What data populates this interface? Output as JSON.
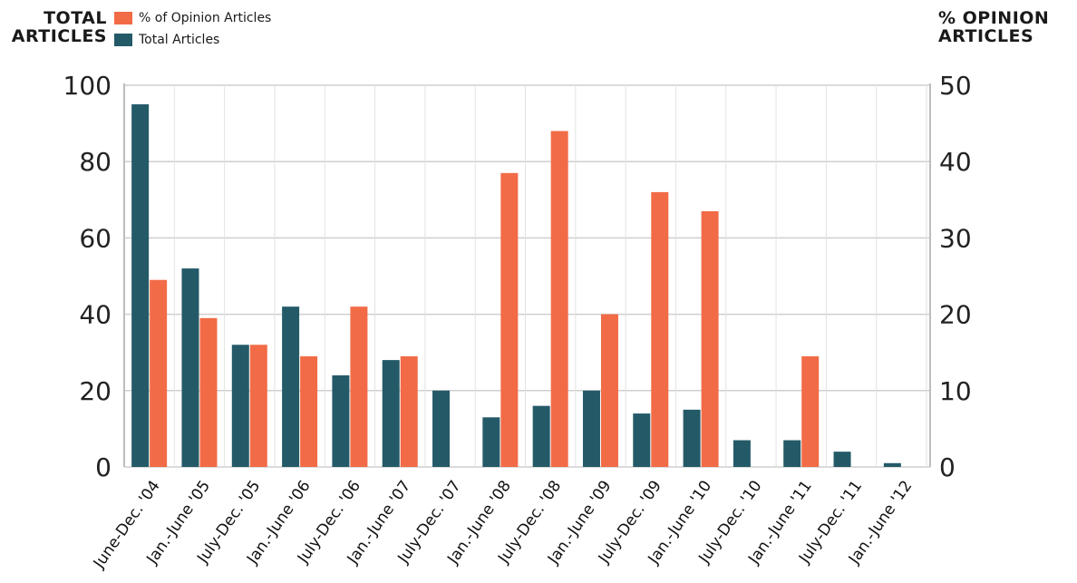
{
  "chart_data": {
    "type": "bar",
    "y_left_title": [
      "TOTAL",
      "ARTICLES"
    ],
    "y_right_title": [
      "% OPINION",
      "ARTICLES"
    ],
    "categories": [
      "June-Dec. '04",
      "Jan.-June '05",
      "July-Dec. '05",
      "Jan.-June '06",
      "July-Dec. '06",
      "Jan.-June '07",
      "July-Dec. '07",
      "Jan.-June '08",
      "July-Dec. '08",
      "Jan.-June '09",
      "July-Dec. '09",
      "Jan.-June '10",
      "July-Dec. '10",
      "Jan.-June '11",
      "July-Dec. '11",
      "Jan.-June '12"
    ],
    "series": [
      {
        "name": "Total Articles",
        "axis": "left",
        "color": "#245a68",
        "values": [
          95,
          52,
          32,
          42,
          24,
          28,
          20,
          13,
          16,
          20,
          14,
          15,
          7,
          7,
          4,
          1
        ]
      },
      {
        "name": "% of Opinion Articles",
        "axis": "right",
        "color": "#f26b47",
        "values": [
          24.5,
          19.5,
          16,
          14.5,
          21,
          14.5,
          0,
          38.5,
          44,
          20,
          36,
          33.5,
          0,
          14.5,
          0,
          0
        ]
      }
    ],
    "ylim_left": [
      0,
      100
    ],
    "ylim_right": [
      0,
      50
    ],
    "yticks_left": [
      0,
      20,
      40,
      60,
      80,
      100
    ],
    "yticks_right": [
      0,
      10,
      20,
      30,
      40,
      50
    ],
    "grid": true,
    "legend_position": "top-left"
  }
}
